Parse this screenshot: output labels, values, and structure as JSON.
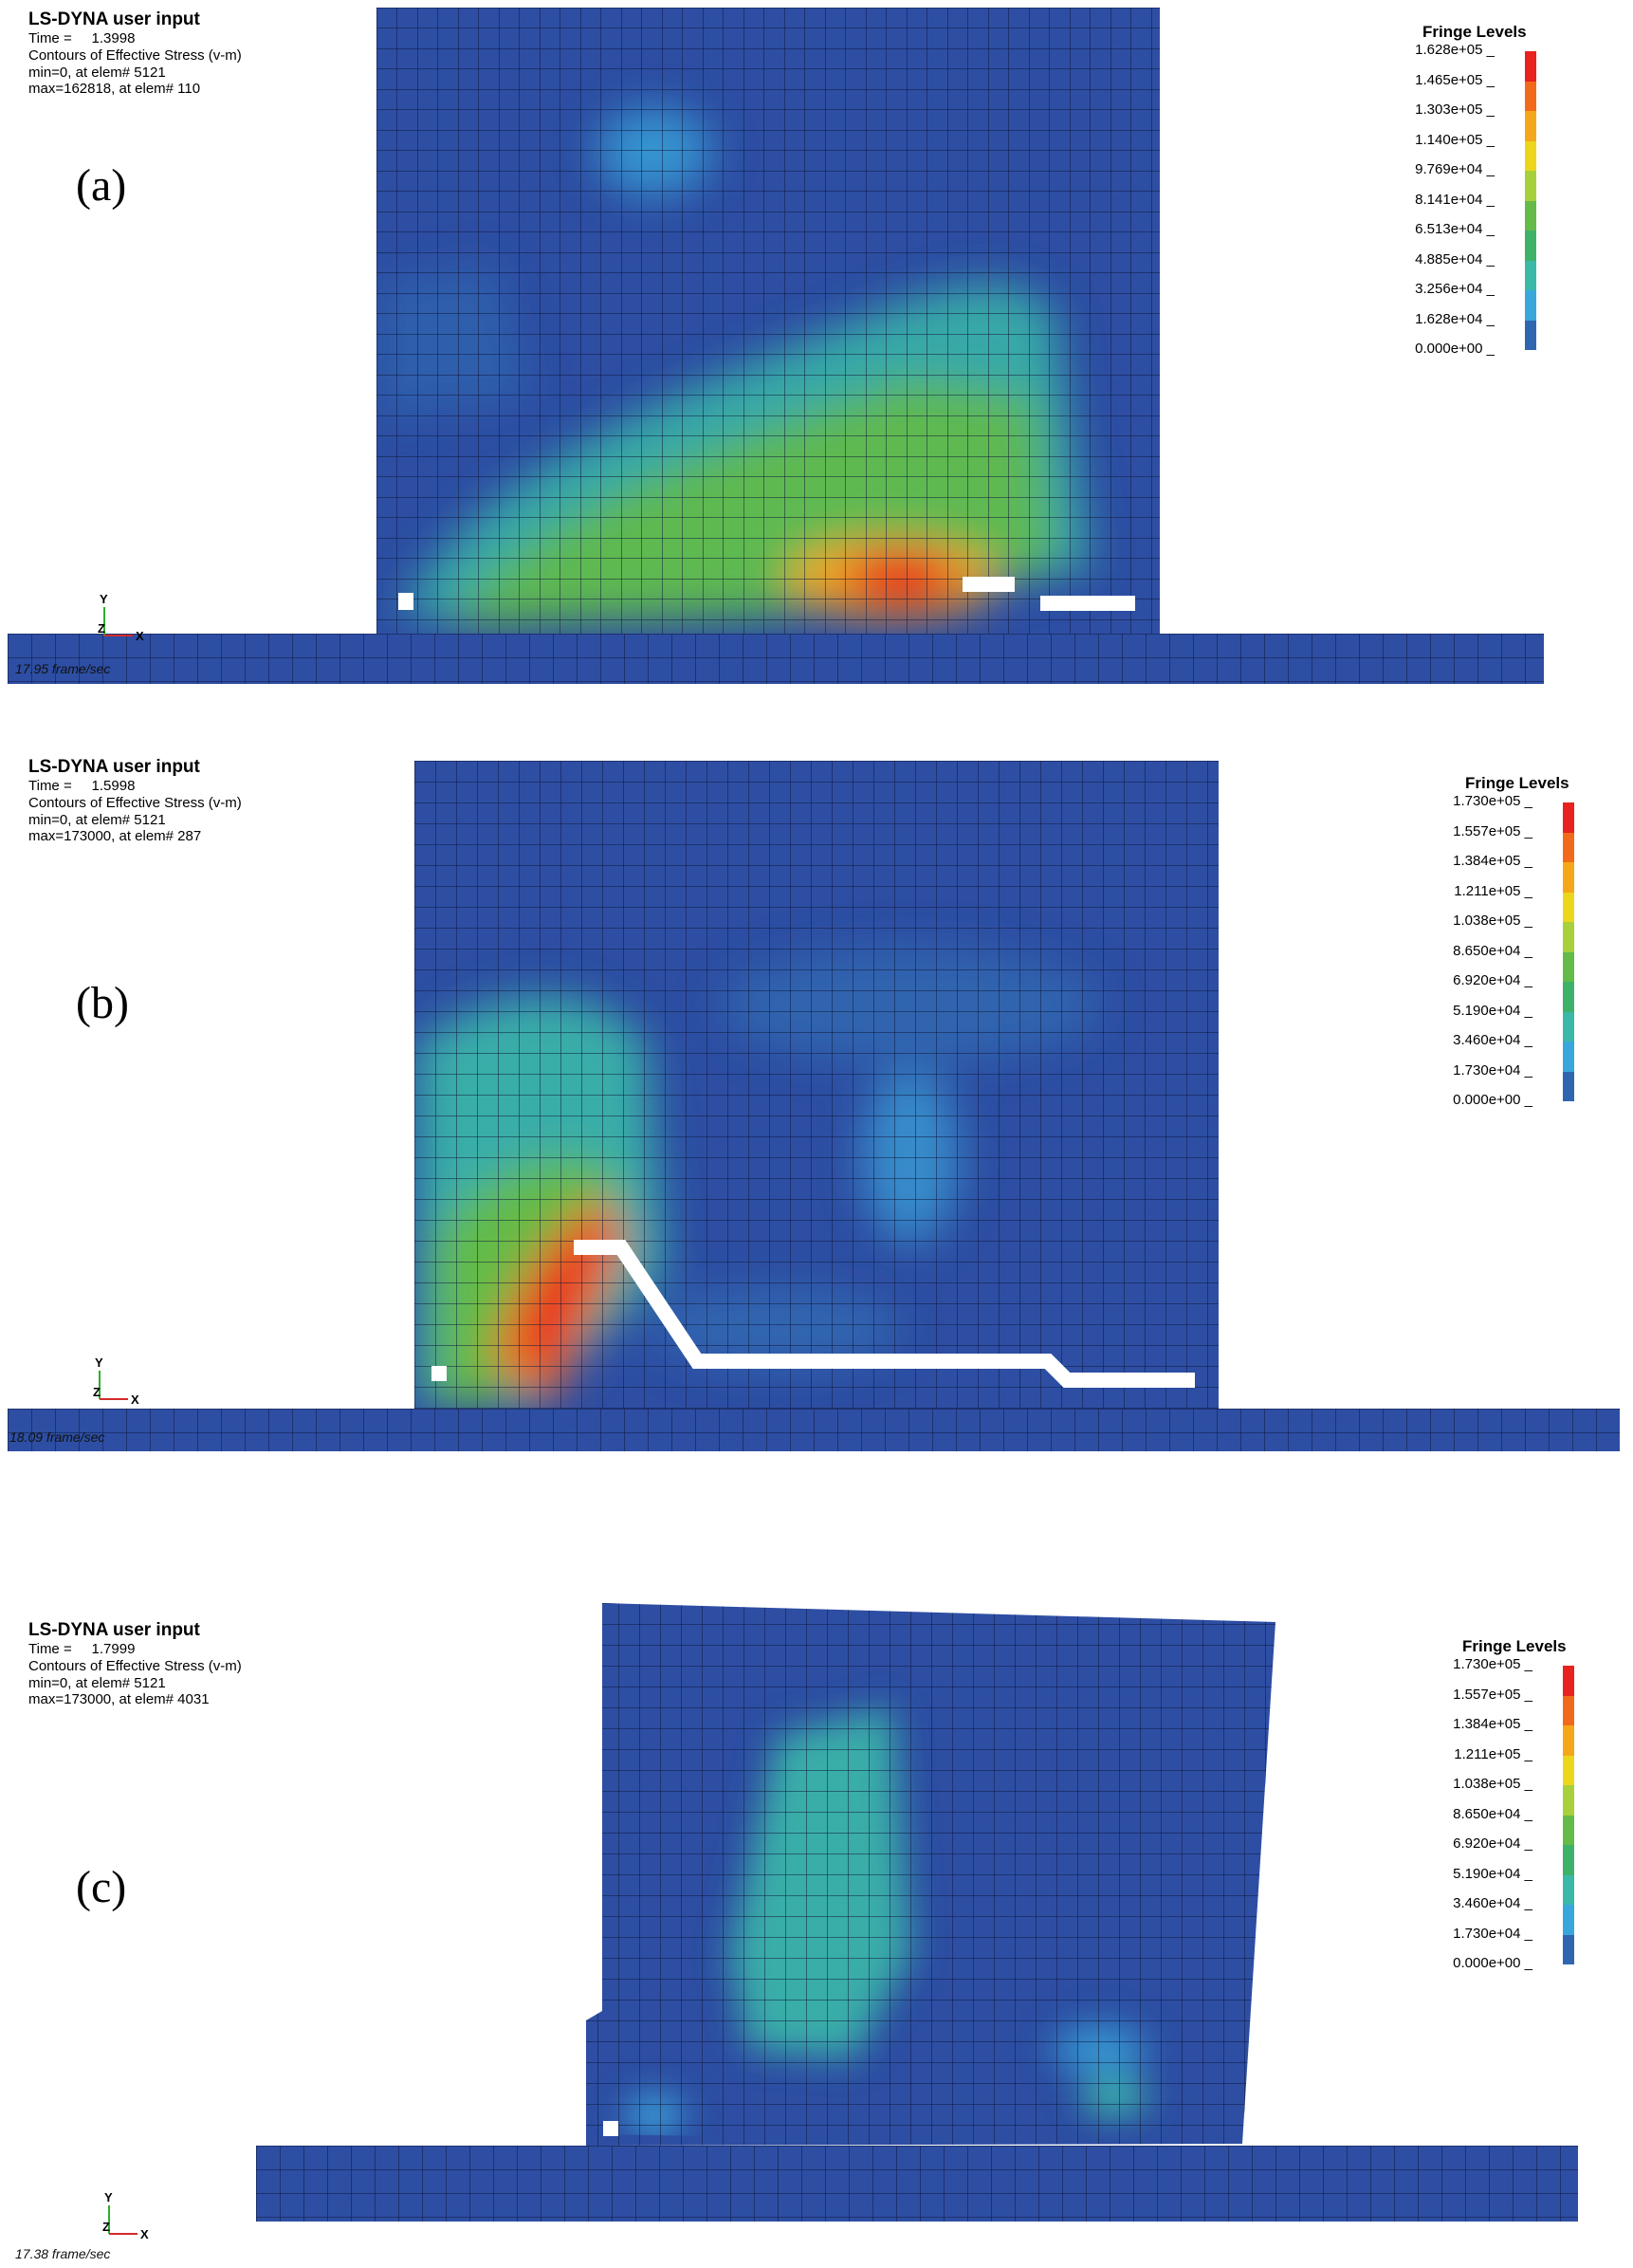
{
  "panels": [
    {
      "tag": "(a)",
      "header": {
        "title": "LS-DYNA user input",
        "time_label": "Time =",
        "time_value": "1.3998",
        "contours": "Contours of Effective Stress (v-m)",
        "min": "min=0, at elem# 5121",
        "max": "max=162818, at elem# 110"
      },
      "fps": "17.95 frame/sec",
      "legend_title": "Fringe Levels",
      "legend_values": [
        "1.628e+05",
        "1.465e+05",
        "1.303e+05",
        "1.140e+05",
        "9.769e+04",
        "8.141e+04",
        "6.513e+04",
        "4.885e+04",
        "3.256e+04",
        "1.628e+04",
        "0.000e+00"
      ]
    },
    {
      "tag": "(b)",
      "header": {
        "title": "LS-DYNA user input",
        "time_label": "Time =",
        "time_value": "1.5998",
        "contours": "Contours of Effective Stress (v-m)",
        "min": "min=0, at elem# 5121",
        "max": "max=173000, at elem# 287"
      },
      "fps": "18.09 frame/sec",
      "legend_title": "Fringe Levels",
      "legend_values": [
        "1.730e+05",
        "1.557e+05",
        "1.384e+05",
        "1.211e+05",
        "1.038e+05",
        "8.650e+04",
        "6.920e+04",
        "5.190e+04",
        "3.460e+04",
        "1.730e+04",
        "0.000e+00"
      ]
    },
    {
      "tag": "(c)",
      "header": {
        "title": "LS-DYNA user input",
        "time_label": "Time =",
        "time_value": "1.7999",
        "contours": "Contours of Effective Stress (v-m)",
        "min": "min=0, at elem# 5121",
        "max": "max=173000, at elem# 4031"
      },
      "fps": "17.38 frame/sec",
      "legend_title": "Fringe Levels",
      "legend_values": [
        "1.730e+05",
        "1.557e+05",
        "1.384e+05",
        "1.211e+05",
        "1.038e+05",
        "8.650e+04",
        "6.920e+04",
        "5.190e+04",
        "3.460e+04",
        "1.730e+04",
        "0.000e+00"
      ]
    }
  ],
  "axis_labels": {
    "y": "Y",
    "x": "X",
    "z": "Z"
  },
  "colors": {
    "fringe": [
      "#e8221f",
      "#f2691b",
      "#f5a71a",
      "#ecd61c",
      "#a8d03a",
      "#64bb47",
      "#3fb26a",
      "#3ab8a8",
      "#3aa7dc",
      "#3066b0",
      "#2f4a9c"
    ],
    "base_blue": "#2d4ea3",
    "mesh_line": "#111a3a"
  }
}
